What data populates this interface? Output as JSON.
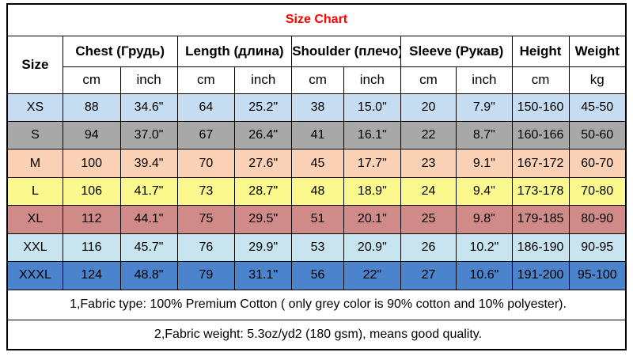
{
  "title": "Size Chart",
  "title_color": "#ff0000",
  "columns": {
    "size_label": "Size",
    "groups": [
      {
        "label": "Chest  (Грудь)"
      },
      {
        "label": "Length (длина)"
      },
      {
        "label": "Shoulder (плечо)"
      },
      {
        "label": "Sleeve (Рукав)"
      },
      {
        "label": "Height"
      },
      {
        "label": "Weight"
      }
    ],
    "units": [
      "cm",
      "inch",
      "cm",
      "inch",
      "cm",
      "inch",
      "cm",
      "inch",
      "cm",
      "kg"
    ]
  },
  "rows": [
    {
      "size": "XS",
      "bg": "#c6dcf0",
      "values": [
        "88",
        "34.6\"",
        "64",
        "25.2\"",
        "38",
        "15.0\"",
        "20",
        "7.9\"",
        "150-160",
        "45-50"
      ]
    },
    {
      "size": "S",
      "bg": "#a8a8a8",
      "values": [
        "94",
        "37.0\"",
        "67",
        "26.4\"",
        "41",
        "16.1\"",
        "22",
        "8.7\"",
        "160-166",
        "50-60"
      ]
    },
    {
      "size": "M",
      "bg": "#fbd1b5",
      "values": [
        "100",
        "39.4\"",
        "70",
        "27.6\"",
        "45",
        "17.7\"",
        "23",
        "9.1\"",
        "167-172",
        "60-70"
      ]
    },
    {
      "size": "L",
      "bg": "#fbf88e",
      "values": [
        "106",
        "41.7\"",
        "73",
        "28.7\"",
        "48",
        "18.9\"",
        "24",
        "9.4\"",
        "173-178",
        "70-80"
      ]
    },
    {
      "size": "XL",
      "bg": "#d08b89",
      "values": [
        "112",
        "44.1\"",
        "75",
        "29.5\"",
        "51",
        "20.1\"",
        "25",
        "9.8\"",
        "179-185",
        "80-90"
      ]
    },
    {
      "size": "XXL",
      "bg": "#c8e4ef",
      "values": [
        "116",
        "45.7\"",
        "76",
        "29.9\"",
        "53",
        "20.9\"",
        "26",
        "10.2\"",
        "186-190",
        "90-95"
      ]
    },
    {
      "size": "XXXL",
      "bg": "#4c83cd",
      "values": [
        "124",
        "48.8\"",
        "79",
        "31.1\"",
        "56",
        "22\"",
        "27",
        "10.6\"",
        "191-200",
        "95-100"
      ]
    }
  ],
  "notes": [
    "1,Fabric type: 100% Premium Cotton ( only grey color is 90% cotton and 10% polyester).",
    "2,Fabric weight: 5.3oz/yd2 (180 gsm), means good quality."
  ]
}
